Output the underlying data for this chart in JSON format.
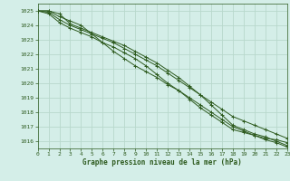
{
  "background_color": "#d4eee8",
  "grid_color": "#b8d8cc",
  "line_color": "#2d5a1e",
  "xlabel": "Graphe pression niveau de la mer (hPa)",
  "ylim": [
    1015.5,
    1025.5
  ],
  "xlim": [
    0,
    23
  ],
  "yticks": [
    1016,
    1017,
    1018,
    1019,
    1020,
    1021,
    1022,
    1023,
    1024,
    1025
  ],
  "xticks": [
    0,
    1,
    2,
    3,
    4,
    5,
    6,
    7,
    8,
    9,
    10,
    11,
    12,
    13,
    14,
    15,
    16,
    17,
    18,
    19,
    20,
    21,
    22,
    23
  ],
  "series": [
    [
      1025.0,
      1025.0,
      1024.8,
      1024.1,
      1023.8,
      1023.5,
      1023.2,
      1022.9,
      1022.6,
      1022.2,
      1021.8,
      1021.4,
      1020.9,
      1020.4,
      1019.8,
      1019.2,
      1018.5,
      1017.8,
      1017.1,
      1016.8,
      1016.5,
      1016.3,
      1016.0,
      1015.7
    ],
    [
      1025.0,
      1024.8,
      1024.2,
      1023.8,
      1023.5,
      1023.2,
      1022.8,
      1022.5,
      1022.1,
      1021.7,
      1021.2,
      1020.6,
      1020.0,
      1019.5,
      1018.9,
      1018.3,
      1017.8,
      1017.3,
      1016.8,
      1016.6,
      1016.4,
      1016.2,
      1016.1,
      1015.9
    ],
    [
      1025.0,
      1024.9,
      1024.4,
      1024.0,
      1023.7,
      1023.4,
      1023.1,
      1022.8,
      1022.4,
      1022.0,
      1021.6,
      1021.2,
      1020.7,
      1020.2,
      1019.7,
      1019.2,
      1018.7,
      1018.2,
      1017.7,
      1017.4,
      1017.1,
      1016.8,
      1016.5,
      1016.2
    ],
    [
      1025.0,
      1025.0,
      1024.6,
      1024.3,
      1024.0,
      1023.4,
      1022.8,
      1022.2,
      1021.7,
      1021.2,
      1020.8,
      1020.4,
      1019.9,
      1019.5,
      1019.0,
      1018.5,
      1018.0,
      1017.5,
      1017.0,
      1016.7,
      1016.4,
      1016.1,
      1015.9,
      1015.6
    ]
  ]
}
